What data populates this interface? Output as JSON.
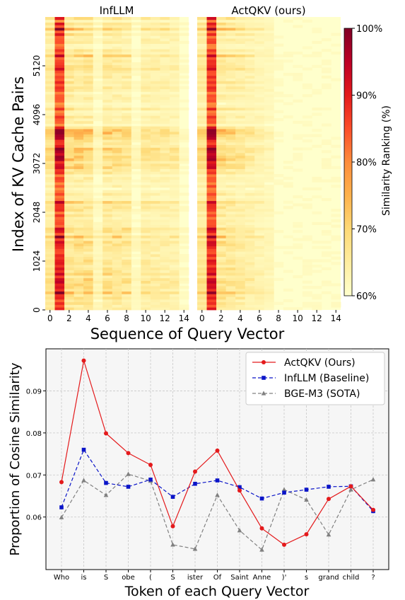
{
  "chart_data": [
    {
      "type": "heatmap",
      "panels": [
        {
          "title": "InfLLM",
          "column_peak": 1,
          "active_columns": 14
        },
        {
          "title": "ActQKV (ours)",
          "column_peak": 1,
          "active_columns": 7
        }
      ],
      "xlabel": "Sequence of Query Vector",
      "ylabel": "Index of KV Cache Pairs",
      "x_ticks": [
        "0",
        "2",
        "4",
        "6",
        "8",
        "10",
        "12",
        "14"
      ],
      "x_tick_values": [
        0,
        2,
        4,
        6,
        8,
        10,
        12,
        14
      ],
      "y_ticks": [
        "0",
        "1024",
        "2048",
        "3072",
        "4096",
        "5120"
      ],
      "y_tick_values": [
        0,
        1024,
        2048,
        3072,
        4096,
        5120
      ],
      "xlim": [
        -0.5,
        14.5
      ],
      "ylim": [
        0,
        6144
      ],
      "colorbar": {
        "label": "Similarity Ranking (%)",
        "ticks": [
          "60%",
          "70%",
          "80%",
          "90%",
          "100%"
        ],
        "range": [
          60,
          100
        ],
        "cmap": [
          "#ffffcc",
          "#ffeda0",
          "#fed976",
          "#feb24c",
          "#fd8d3c",
          "#fc4e2a",
          "#e31a1c",
          "#bd0026",
          "#800026"
        ]
      }
    },
    {
      "type": "line",
      "xlabel": "Token of each Query Vector",
      "ylabel": "Proportion of Cosine Similarity",
      "categories": [
        "Who",
        "is",
        "S",
        "obe",
        "(",
        "S",
        "ister",
        "Of",
        "Saint",
        "Anne",
        ")'",
        "s",
        "grand",
        "child",
        "?"
      ],
      "ylim": [
        0.0475,
        0.1
      ],
      "y_ticks": [
        0.06,
        0.07,
        0.08,
        0.09
      ],
      "y_tick_labels": [
        "0.06",
        "0.07",
        "0.08",
        "0.09"
      ],
      "grid": true,
      "legend": "top-right",
      "series": [
        {
          "name": "ActQKV (Ours)",
          "color": "#e41a1c",
          "style": "solid",
          "marker": "circle",
          "values": [
            0.0683,
            0.0972,
            0.0799,
            0.0752,
            0.0724,
            0.0578,
            0.0708,
            0.0758,
            0.0663,
            0.0573,
            0.0534,
            0.0559,
            0.0643,
            0.0673,
            0.0617
          ]
        },
        {
          "name": "InfLLM (Baseline)",
          "color": "#0a14c8",
          "style": "dashed",
          "marker": "square",
          "values": [
            0.0623,
            0.076,
            0.0681,
            0.0672,
            0.0689,
            0.0648,
            0.0679,
            0.0687,
            0.0671,
            0.0644,
            0.0658,
            0.0665,
            0.0672,
            0.0673,
            0.0614
          ]
        },
        {
          "name": "BGE-M3 (SOTA)",
          "color": "#808080",
          "style": "dashed",
          "marker": "triangle",
          "values": [
            0.0599,
            0.0687,
            0.0652,
            0.0702,
            0.0686,
            0.0534,
            0.0524,
            0.0652,
            0.0568,
            0.0522,
            0.0665,
            0.0641,
            0.0558,
            0.0665,
            0.0689
          ]
        }
      ]
    }
  ]
}
